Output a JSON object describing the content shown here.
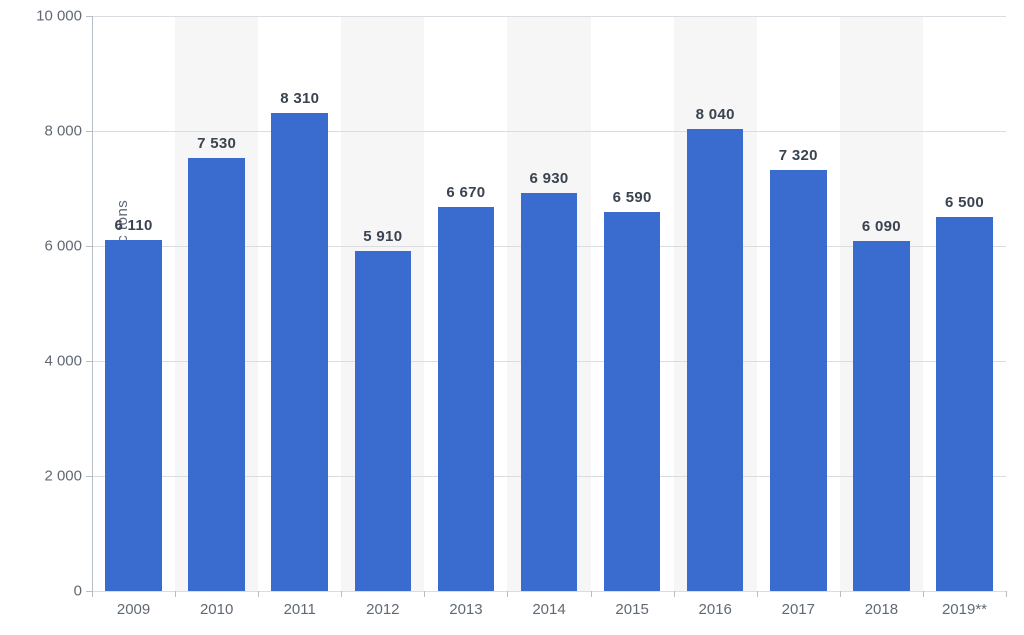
{
  "chart": {
    "type": "bar",
    "y_axis_label": "Silver consumption in metric tons",
    "ylim": [
      0,
      10000
    ],
    "y_ticks": [
      0,
      2000,
      4000,
      6000,
      8000,
      10000
    ],
    "y_tick_labels": [
      "0",
      "2 000",
      "4 000",
      "6 000",
      "8 000",
      "10 000"
    ],
    "categories": [
      "2009",
      "2010",
      "2011",
      "2012",
      "2013",
      "2014",
      "2015",
      "2016",
      "2017",
      "2018",
      "2019**"
    ],
    "values": [
      6110,
      7530,
      8310,
      5910,
      6670,
      6930,
      6590,
      8040,
      7320,
      6090,
      6500
    ],
    "value_labels": [
      "6 110",
      "7 530",
      "8 310",
      "5 910",
      "6 670",
      "6 930",
      "6 590",
      "8 040",
      "7 320",
      "6 090",
      "6 500"
    ],
    "bar_color": "#3a6cd0",
    "bar_width_ratio": 0.68,
    "background_color": "#ffffff",
    "stripe_color": "#f6f6f6",
    "grid_color": "#d9dde2",
    "axis_color": "#b8bec6",
    "tick_label_color": "#606973",
    "value_label_color": "#3a4350",
    "value_label_fontsize": 15,
    "tick_label_fontsize": 15,
    "y_axis_label_fontsize": 15,
    "font_family": "Arial"
  }
}
